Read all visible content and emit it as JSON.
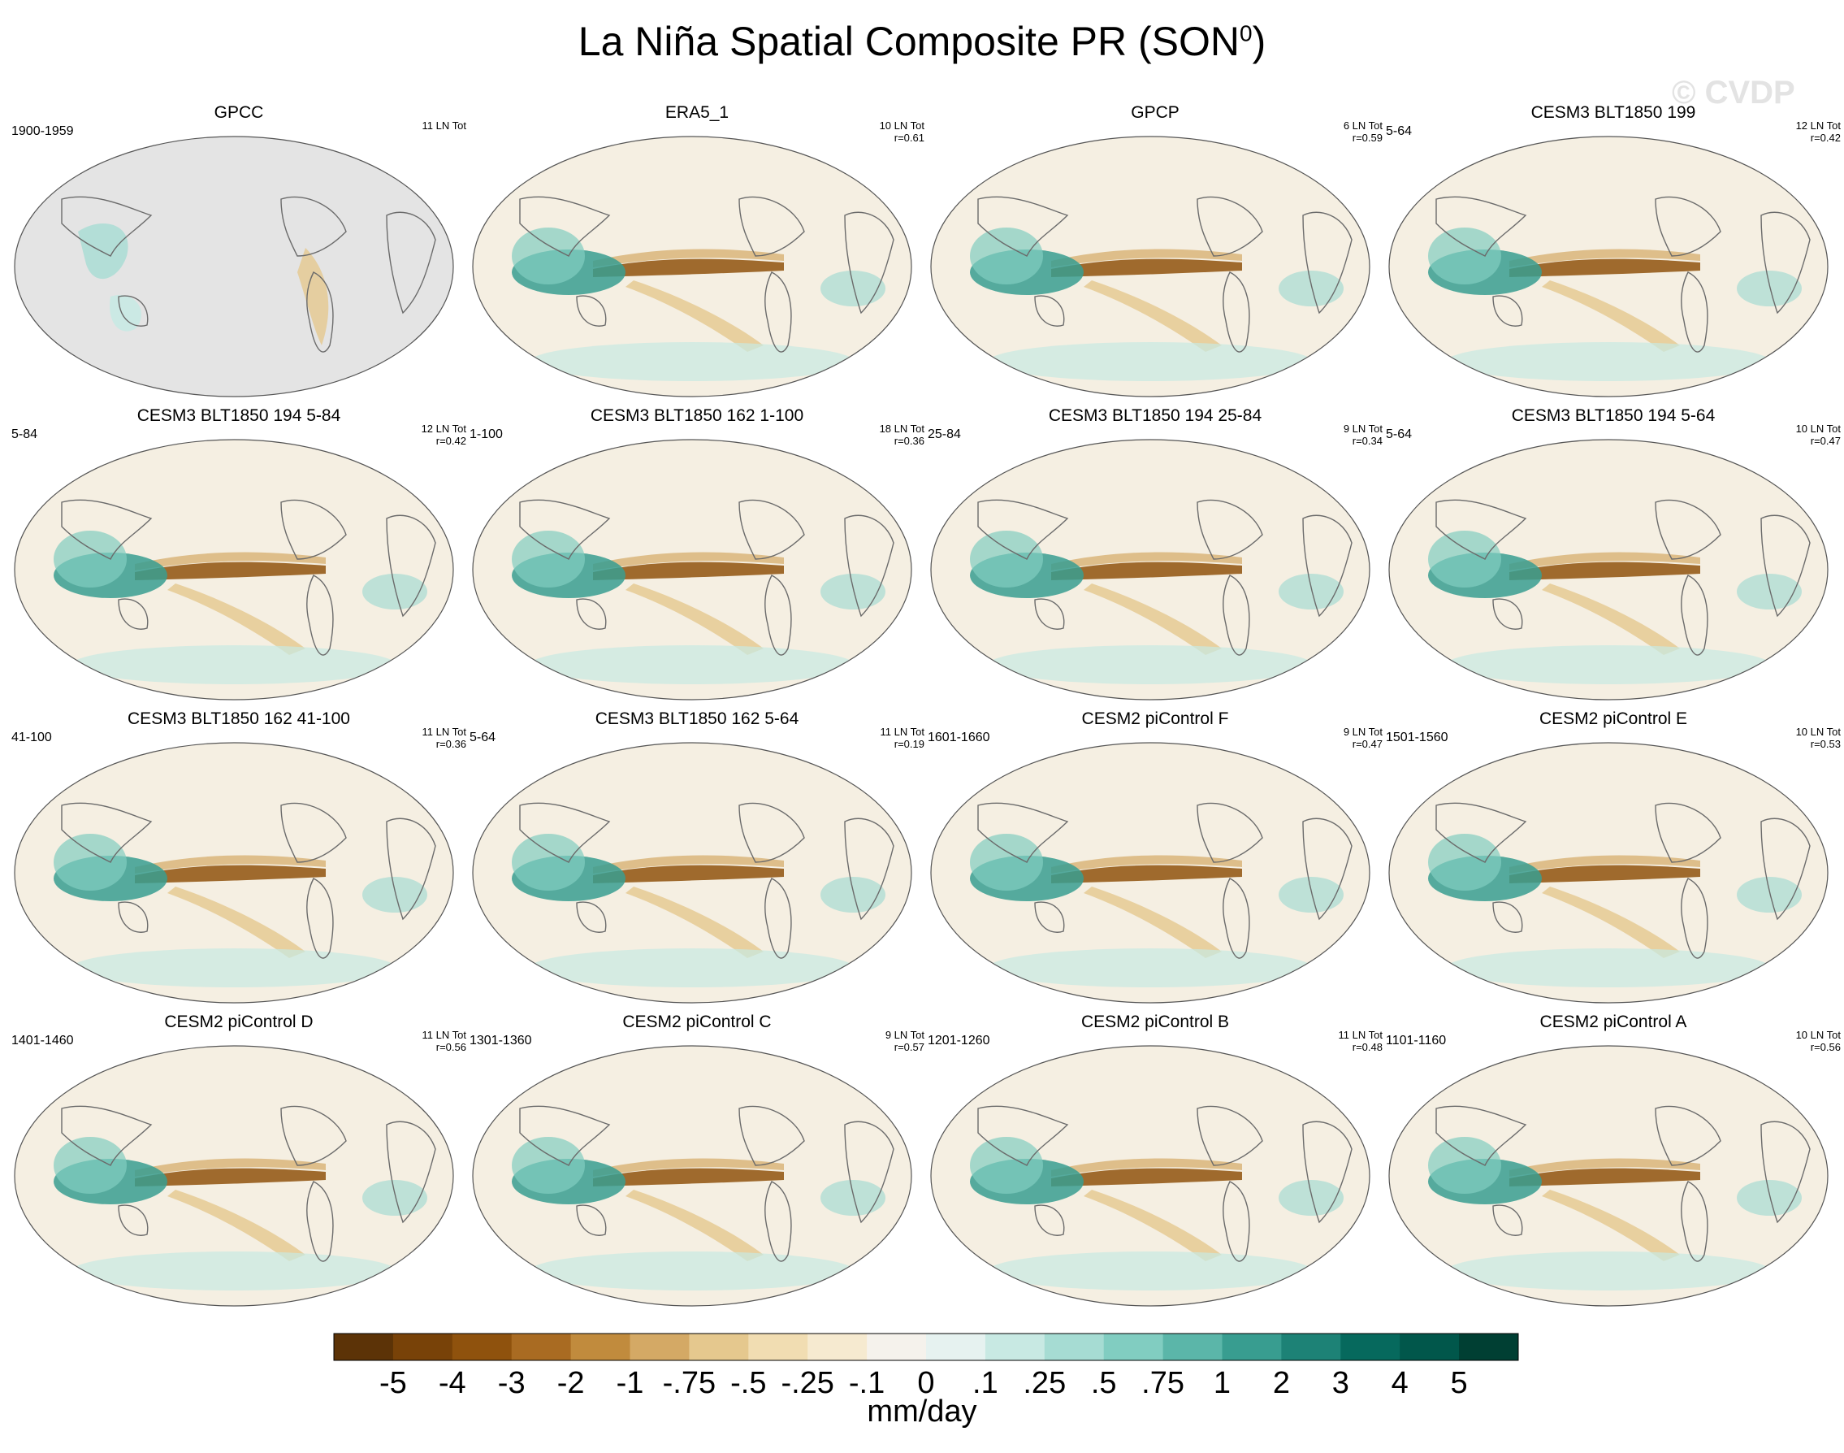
{
  "title": {
    "main": "La Niña Spatial Composite PR (SON",
    "sup": "0",
    "close": ")"
  },
  "watermark": "© CVDP",
  "chart_data": {
    "type": "heatmap",
    "title": "La Niña Spatial Composite PR (SON0)",
    "units": "mm/day",
    "colorbar": {
      "labels": [
        "-5",
        "-4",
        "-3",
        "-2",
        "-1",
        "-.75",
        "-.5",
        "-.25",
        "-.1",
        "0",
        ".1",
        ".25",
        ".5",
        ".75",
        "1",
        "2",
        "3",
        "4",
        "5"
      ],
      "values": [
        -5,
        -4,
        -3,
        -2,
        -1,
        -0.75,
        -0.5,
        -0.25,
        -0.1,
        0,
        0.1,
        0.25,
        0.5,
        0.75,
        1,
        2,
        3,
        4,
        5
      ],
      "colors": [
        "#5c3307",
        "#784208",
        "#8f520d",
        "#a96b22",
        "#c18b3d",
        "#d4a965",
        "#e5c88e",
        "#f1ddb2",
        "#f6ead0",
        "#f5f2ec",
        "#e6f2f0",
        "#c8e9e3",
        "#a6dcd3",
        "#81cdc1",
        "#5bb6a9",
        "#389d90",
        "#1d8276",
        "#06695d",
        "#01574b",
        "#003f33"
      ]
    },
    "panels": [
      {
        "name": "GPCC",
        "period": "1900-1959",
        "count": "11 LN Tot",
        "r": ""
      },
      {
        "name": "ERA5_1",
        "period": "",
        "count": "10 LN Tot",
        "r": "r=0.61"
      },
      {
        "name": "GPCP",
        "period": "",
        "count": "6 LN Tot",
        "r": "r=0.59"
      },
      {
        "name": "CESM3 BLT1850 199",
        "period": "5-64",
        "count": "12 LN Tot",
        "r": "r=0.42"
      },
      {
        "name": "CESM3 BLT1850 194 5-84",
        "period": "5-84",
        "count": "12 LN Tot",
        "r": "r=0.42"
      },
      {
        "name": "CESM3 BLT1850 162 1-100",
        "period": "1-100",
        "count": "18 LN Tot",
        "r": "r=0.36"
      },
      {
        "name": "CESM3 BLT1850 194 25-84",
        "period": "25-84",
        "count": "9 LN Tot",
        "r": "r=0.34"
      },
      {
        "name": "CESM3 BLT1850 194 5-64",
        "period": "5-64",
        "count": "10 LN Tot",
        "r": "r=0.47"
      },
      {
        "name": "CESM3 BLT1850 162 41-100",
        "period": "41-100",
        "count": "11 LN Tot",
        "r": "r=0.36"
      },
      {
        "name": "CESM3 BLT1850 162 5-64",
        "period": "5-64",
        "count": "11 LN Tot",
        "r": "r=0.19"
      },
      {
        "name": "CESM2 piControl F",
        "period": "1601-1660",
        "count": "9 LN Tot",
        "r": "r=0.47"
      },
      {
        "name": "CESM2 piControl E",
        "period": "1501-1560",
        "count": "10 LN Tot",
        "r": "r=0.53"
      },
      {
        "name": "CESM2 piControl D",
        "period": "1401-1460",
        "count": "11 LN Tot",
        "r": "r=0.56"
      },
      {
        "name": "CESM2 piControl C",
        "period": "1301-1360",
        "count": "9 LN Tot",
        "r": "r=0.57"
      },
      {
        "name": "CESM2 piControl B",
        "period": "1201-1260",
        "count": "11 LN Tot",
        "r": "r=0.48"
      },
      {
        "name": "CESM2 piControl A",
        "period": "1101-1160",
        "count": "10 LN Tot",
        "r": "r=0.56"
      }
    ]
  }
}
